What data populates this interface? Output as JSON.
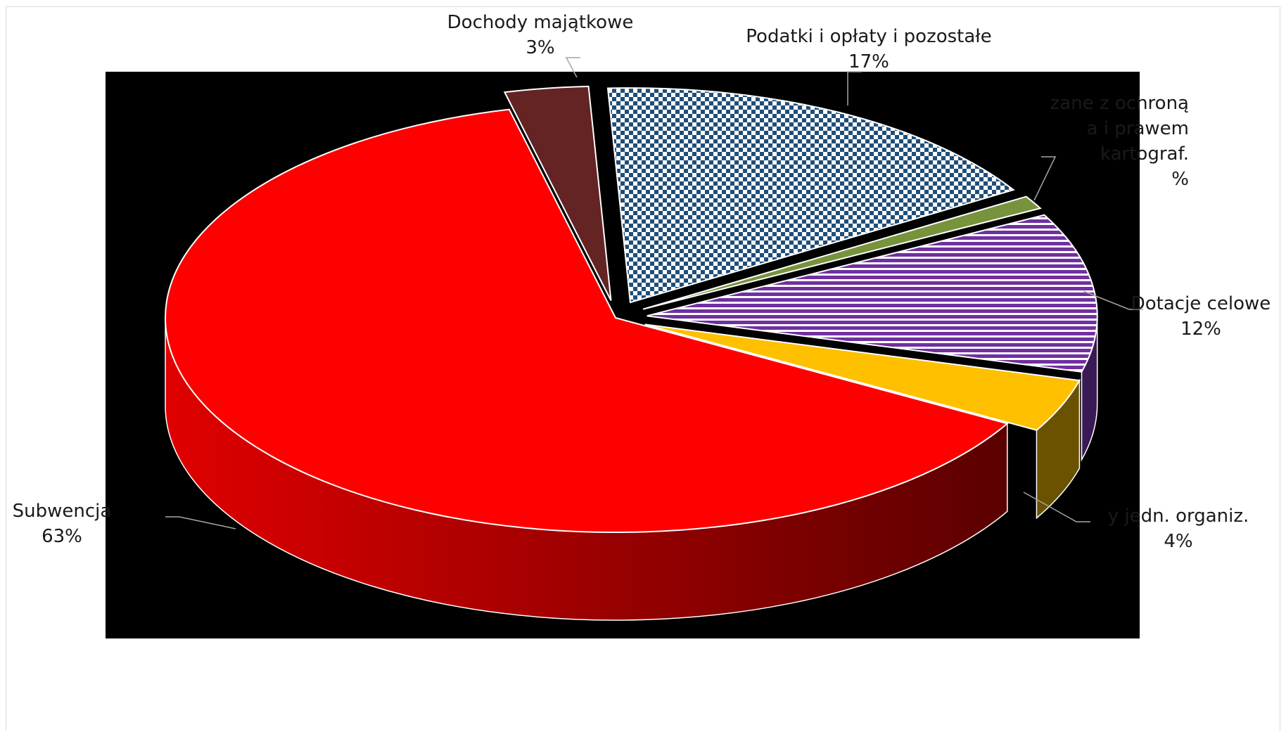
{
  "chart_data": {
    "type": "pie",
    "title": "",
    "slices": [
      {
        "name": "Podatki i opłaty i pozostałe",
        "display_lines": [
          "Podatki i opłaty i pozostałe",
          "17%"
        ],
        "value": 17,
        "color": "#1f4e79",
        "pattern": "checker"
      },
      {
        "name": "Dochody związane z ochroną środowiska i prawem geodez. i kartograf.",
        "display_lines": [
          "zane z ochroną",
          "a i prawem",
          "kartograf.",
          "%"
        ],
        "value": 1,
        "color": "#77933c"
      },
      {
        "name": "Dotacje celowe",
        "display_lines": [
          "Dotacje celowe",
          "12%"
        ],
        "value": 12,
        "color": "#7030a0",
        "pattern": "stripes"
      },
      {
        "name": "Dochody jedn. organiz.",
        "display_lines": [
          "y jedn. organiz.",
          "4%"
        ],
        "value": 4,
        "color": "#ffc000"
      },
      {
        "name": "Subwencja",
        "display_lines": [
          "Subwencja",
          "63%"
        ],
        "value": 63,
        "color": "#ff0000"
      },
      {
        "name": "Dochody majątkowe",
        "display_lines": [
          "Dochody majątkowe",
          "3%"
        ],
        "value": 3,
        "color": "#632423"
      }
    ]
  }
}
